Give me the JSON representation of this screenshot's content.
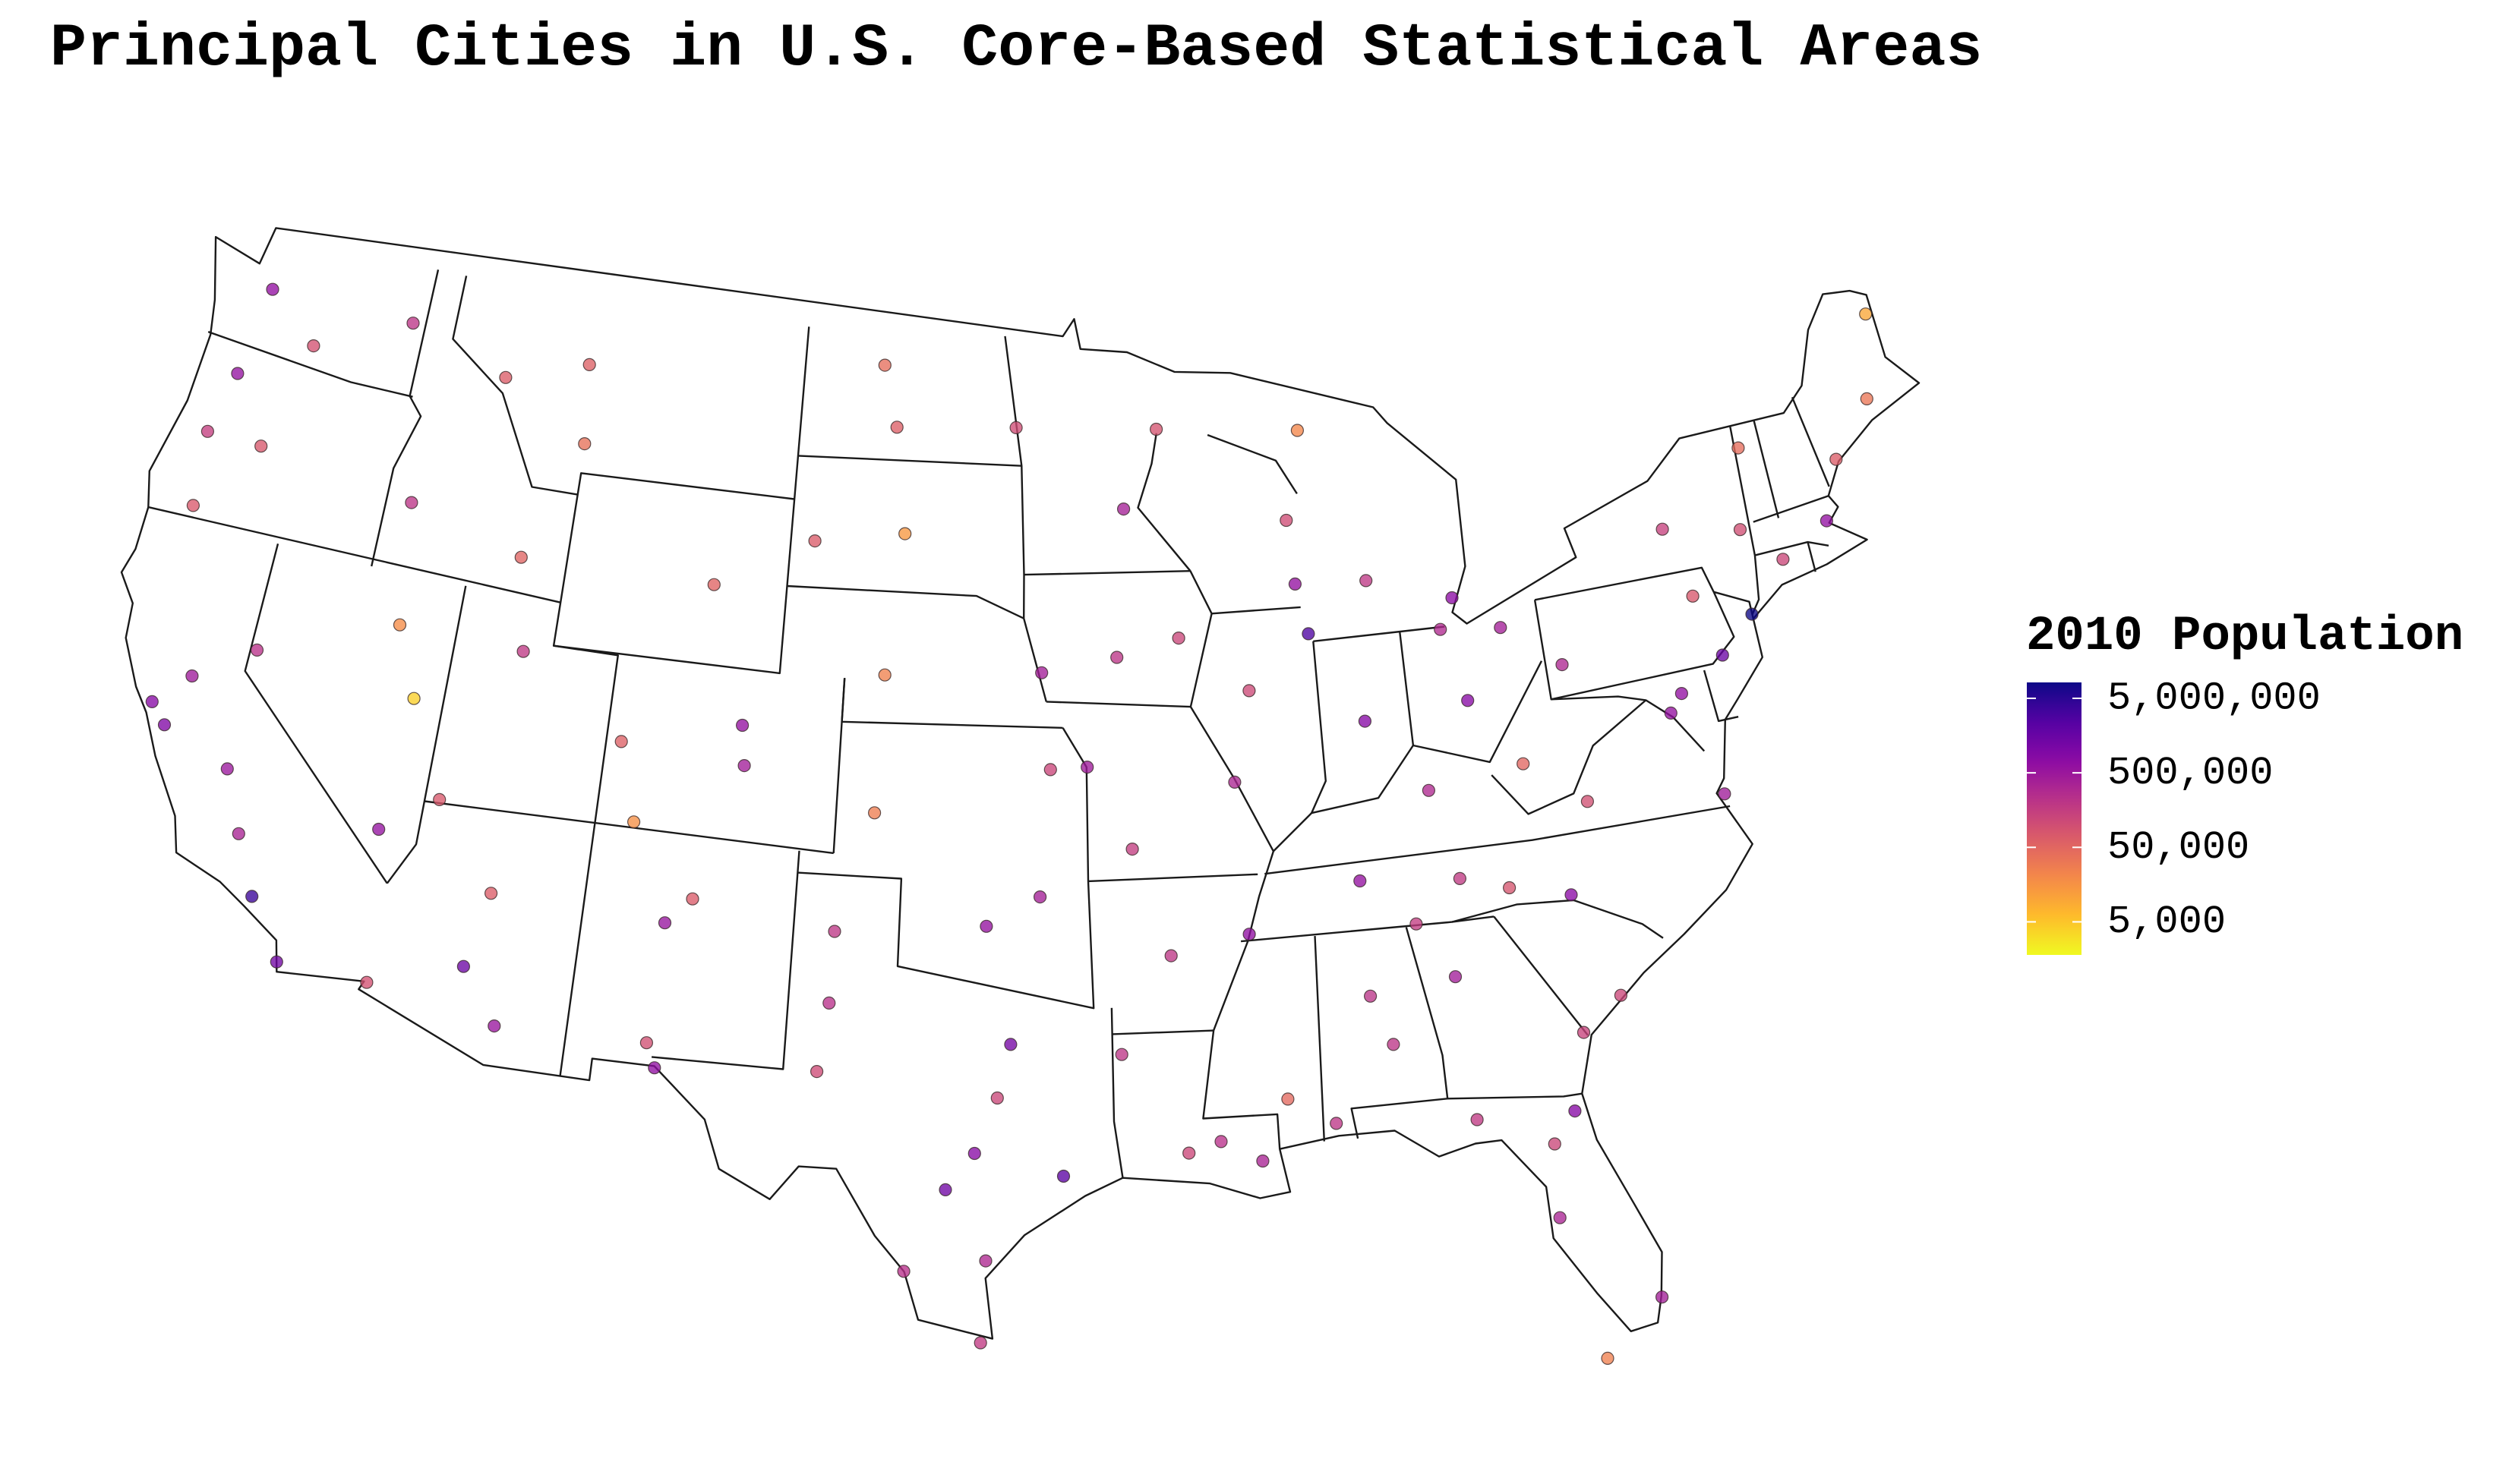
{
  "chart_data": {
    "type": "point-map",
    "title": "Principal Cities in U.S. Core-Based Statistical Areas",
    "legend_title": "2010 Population",
    "color_scale": "log",
    "colormap": "plasma-reversed",
    "clim": [
      1800,
      8175000
    ],
    "cticks": [
      {
        "value": 5000000,
        "label": "5,000,000"
      },
      {
        "value": 500000,
        "label": "500,000"
      },
      {
        "value": 50000,
        "label": "50,000"
      },
      {
        "value": 5000,
        "label": "5,000"
      }
    ],
    "x": [
      -74.01,
      -118.24,
      -87.63,
      -95.37,
      -112.07,
      -75.16,
      -98.49,
      -117.16,
      -96.8,
      -121.89,
      -97.74,
      -81.66,
      -122.42,
      -86.16,
      -83.0,
      -80.84,
      -83.05,
      -106.49,
      -90.05,
      -71.06,
      -122.33,
      -104.99,
      -77.04,
      -86.78,
      -76.61,
      -122.68,
      -97.52,
      -87.91,
      -115.14,
      -106.65,
      -110.97,
      -119.79,
      -121.49,
      -94.58,
      -84.39,
      -95.94,
      -80.19,
      -93.27,
      -95.99,
      -81.69,
      -90.07,
      -82.46,
      -80.0,
      -90.2,
      -111.89,
      -116.2,
      -117.43,
      -93.61,
      -92.29,
      -86.8,
      -119.81,
      -123.09,
      -122.87,
      -119.02,
      -101.83,
      -101.86,
      -97.4,
      -97.5,
      -99.51,
      -93.75,
      -91.15,
      -88.04,
      -84.28,
      -81.1,
      -79.93,
      -83.92,
      -84.5,
      -81.63,
      -73.76,
      -73.21,
      -70.26,
      -68.77,
      -72.68,
      -76.15,
      -85.67,
      -88.02,
      -92.1,
      -87.4,
      -103.23,
      -100.78,
      -111.3,
      -114.0,
      -106.3,
      -108.55,
      -104.82,
      -111.65,
      -114.62,
      -105.94,
      -102.08,
      -97.15,
      -93.3,
      -95.68,
      -100.87,
      -100.77,
      -100.35,
      -115.76,
      -114.89,
      -121.31,
      -120.5,
      -112.45,
      -113.58,
      -106.78,
      -81.78,
      -82.32,
      -86.3,
      -85.31,
      -82.55,
      -75.98,
      -79.94,
      -75.66,
      -83.54,
      -89.59,
      -91.67,
      -89.29,
      -92.02,
      -101.3,
      -111.04,
      -107.88,
      -96.79,
      -68.01
    ],
    "y": [
      40.71,
      34.05,
      41.88,
      29.76,
      33.45,
      39.95,
      29.42,
      32.72,
      32.78,
      37.34,
      30.27,
      30.33,
      37.77,
      39.77,
      39.96,
      35.23,
      42.33,
      31.76,
      35.15,
      42.36,
      47.61,
      39.74,
      38.9,
      36.16,
      39.29,
      45.52,
      35.47,
      43.04,
      36.17,
      35.08,
      32.22,
      36.74,
      38.58,
      39.1,
      33.75,
      41.26,
      25.77,
      44.98,
      36.15,
      41.5,
      29.95,
      27.95,
      40.44,
      38.63,
      40.76,
      43.62,
      47.66,
      41.59,
      34.75,
      33.52,
      39.53,
      44.05,
      42.33,
      35.37,
      35.22,
      33.58,
      27.8,
      25.9,
      27.51,
      32.53,
      30.45,
      30.69,
      30.44,
      32.08,
      32.78,
      35.96,
      38.04,
      38.35,
      42.65,
      44.48,
      43.66,
      44.8,
      41.76,
      43.05,
      42.96,
      44.51,
      46.79,
      46.55,
      44.08,
      46.81,
      47.5,
      46.87,
      42.87,
      39.06,
      38.83,
      35.2,
      32.69,
      35.69,
      32.0,
      31.55,
      37.21,
      39.05,
      37.97,
      41.12,
      44.37,
      40.83,
      39.25,
      44.06,
      46.6,
      42.87,
      37.1,
      32.31,
      24.56,
      29.65,
      32.37,
      35.05,
      35.6,
      36.85,
      37.27,
      41.41,
      41.65,
      40.69,
      41.98,
      31.33,
      30.22,
      48.23,
      45.68,
      37.28,
      46.88,
      46.68
    ],
    "values": [
      8175000,
      3793000,
      2696000,
      2099000,
      1446000,
      1526000,
      1327000,
      1307000,
      1198000,
      946000,
      790000,
      822000,
      805000,
      820000,
      787000,
      731000,
      714000,
      649000,
      647000,
      618000,
      608000,
      600000,
      602000,
      601000,
      621000,
      584000,
      580000,
      595000,
      584000,
      546000,
      520000,
      495000,
      466000,
      460000,
      420000,
      409000,
      399000,
      383000,
      392000,
      397000,
      344000,
      336000,
      306000,
      319000,
      186000,
      206000,
      209000,
      203000,
      194000,
      212000,
      225000,
      156000,
      75000,
      347000,
      190000,
      229000,
      305000,
      175000,
      236000,
      199000,
      229000,
      195000,
      181000,
      136000,
      120000,
      178000,
      296000,
      51000,
      98000,
      42000,
      66000,
      33000,
      125000,
      145000,
      188000,
      104000,
      86000,
      21000,
      68000,
      61000,
      59000,
      67000,
      55000,
      59000,
      416000,
      66000,
      93000,
      68000,
      111000,
      125000,
      160000,
      127000,
      27000,
      24000,
      14000,
      18000,
      4200,
      76000,
      91000,
      54000,
      73000,
      97000,
      25000,
      124000,
      205000,
      167000,
      83000,
      438000,
      97000,
      76000,
      287000,
      115000,
      126000,
      46000,
      120000,
      41000,
      37000,
      17000,
      105000,
      9700
    ]
  }
}
